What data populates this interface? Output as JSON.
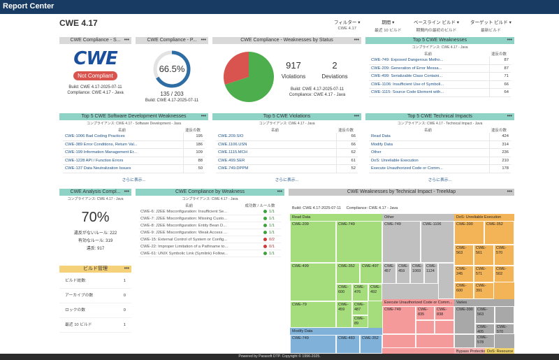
{
  "app": {
    "title": "Report Center"
  },
  "page": {
    "title": "CWE 4.17"
  },
  "filters": [
    {
      "label": "フィルター",
      "value": "CWE 4.17"
    },
    {
      "label": "期間",
      "value": "最近 10 ビルド"
    },
    {
      "label": "ベースライン ビルド",
      "value": "期間内の最初のビルド"
    },
    {
      "label": "ターゲット ビルド",
      "value": "最新ビルド"
    }
  ],
  "compliance_status": {
    "title": "CWE Compliance - S...",
    "logo_text": "CWE",
    "badge": "Not Compliant",
    "build": "Build: CWE 4.17-2025-07-11",
    "compliance": "Compliance: CWE 4.17 - Java",
    "colors": {
      "badge": "#d9534f",
      "logo": "#1a4f9c"
    }
  },
  "compliance_percent": {
    "title": "CWE Compliance - P...",
    "percent": "66.5%",
    "fraction": "135 / 203",
    "build": "Build: CWE 4.17-2025-07-11",
    "value": 0.665
  },
  "weakness_status": {
    "title": "CWE Compliance - Weaknesses by Status",
    "violations_count": "917",
    "violations_label": "Violations",
    "deviations_count": "2",
    "deviations_label": "Deviations",
    "build": "Build: CWE 4.17-2025-07-11",
    "compliance": "Compliance: CWE 4.17 - Java",
    "chart_data": {
      "type": "pie",
      "values": [
        917,
        2
      ],
      "colors": [
        "#4cae4c",
        "#d9534f"
      ]
    }
  },
  "top5_weaknesses": {
    "title": "Top 5 CWE Weaknesses",
    "subtitle": "コンプライアンス: CWE 4.17 - Java",
    "col_name": "名前",
    "col_count": "違反の数",
    "rows": [
      {
        "name": "CWE-749: Exposed Dangerous Metho...",
        "count": "87"
      },
      {
        "name": "CWE-209: Generation of Error Messa...",
        "count": "87"
      },
      {
        "name": "CWE-499: Serializable Class Containi...",
        "count": "71"
      },
      {
        "name": "CWE-1106: Insufficient Use of Symboli...",
        "count": "66"
      },
      {
        "name": "CWE-1115: Source Code Element with...",
        "count": "64"
      }
    ]
  },
  "top5_sdw": {
    "title": "Top 5 CWE Software Development Weaknesses",
    "subtitle": "コンプライアンス: CWE 4.17 - Software Development - Java",
    "col_name": "名前",
    "col_count": "違反の数",
    "rows": [
      {
        "name": "CWE-1006 Bad Coding Practices",
        "count": "195"
      },
      {
        "name": "CWE-389 Error Conditions, Return Val...",
        "count": "186"
      },
      {
        "name": "CWE-199 Information Management Er...",
        "count": "109"
      },
      {
        "name": "CWE-1228 API / Function Errors",
        "count": "88"
      },
      {
        "name": "CWE-137 Data Neutralization Issues",
        "count": "50"
      }
    ],
    "more": "さらに表示..."
  },
  "top5_violations": {
    "title": "Top 5 CWE Violations",
    "subtitle": "コンプライアンス: CWE 4.17 - Java",
    "col_name": "名前",
    "col_count": "違反の数",
    "rows": [
      {
        "name": "CWE.209.SIO",
        "count": "66"
      },
      {
        "name": "CWE.1106.USN",
        "count": "66"
      },
      {
        "name": "CWE.1115.MCH",
        "count": "62"
      },
      {
        "name": "CWE.499.SER",
        "count": "61"
      },
      {
        "name": "CWE.749.DPPM",
        "count": "52"
      }
    ],
    "more": "さらに表示..."
  },
  "top5_impacts": {
    "title": "Top 5 CWE Technical Impacts",
    "subtitle": "コンプライアンス: CWE 4.17 - Technical Impact - Java",
    "col_name": "名前",
    "col_count": "違反の数",
    "rows": [
      {
        "name": "Read Data",
        "count": "424"
      },
      {
        "name": "Modify Data",
        "count": "314"
      },
      {
        "name": "Other",
        "count": "236"
      },
      {
        "name": "DoS: Unreliable Execution",
        "count": "210"
      },
      {
        "name": "Execute Unauthorized Code or Comm...",
        "count": "178"
      }
    ],
    "more": "さらに表示..."
  },
  "analysis": {
    "title": "CWE Analysis Compl...",
    "subtitle": "コンプライアンス: CWE 4.17 - Java",
    "percent": "70%",
    "line1": "違反がないルール: 222",
    "line2": "有効なルール: 319",
    "line3": "違反: 917"
  },
  "by_weakness": {
    "title": "CWE Compliance by Weakness",
    "subtitle": "コンプライアンス: CWE 4.17 - Java",
    "col_name": "名前",
    "col_rate": "成功数 / ルール数",
    "rows": [
      {
        "name": "CWE-6: J2EE Misconfiguration: Insufficient Se...",
        "rate": "1/1",
        "ok": true
      },
      {
        "name": "CWE-7: J2EE Misconfiguration: Missing Custo...",
        "rate": "1/1",
        "ok": true
      },
      {
        "name": "CWE-8: J2EE Misconfiguration: Entity Bean D...",
        "rate": "1/1",
        "ok": true
      },
      {
        "name": "CWE-9: J2EE Misconfiguration: Weak Access ...",
        "rate": "1/1",
        "ok": true
      },
      {
        "name": "CWE-15: External Control of System or Config...",
        "rate": "0/2",
        "ok": false
      },
      {
        "name": "CWE-22: Improper Limitation of a Pathname to...",
        "rate": "0/1",
        "ok": false
      },
      {
        "name": "CWE-61: UNIX Symbolic Link (Symlink) Follow...",
        "rate": "1/1",
        "ok": true
      }
    ]
  },
  "build_mgmt": {
    "title": "ビルド管理",
    "rows": [
      {
        "label": "ビルド総数:",
        "value": "1"
      },
      {
        "label": "アーカイブの数",
        "value": "0"
      },
      {
        "label": "ロックの数",
        "value": "0"
      },
      {
        "label": "最近 10 ビルド",
        "value": "1"
      }
    ]
  },
  "treemap": {
    "title": "CWE Weaknesses by Technical Impact - TreeMap",
    "build": "Build: CWE 4.17-2025-07-11",
    "compliance": "Compliance: CWE 4.17 - Java",
    "categories": [
      {
        "name": "Read Data",
        "color": "#a6dd7c"
      },
      {
        "name": "Other",
        "color": "#c0c0c0"
      },
      {
        "name": "DoS: Unreliable Execution",
        "color": "#f3b458"
      },
      {
        "name": "Execute Unauthorized Code or Comm...",
        "color": "#f49a9a"
      },
      {
        "name": "Varies",
        "color": "#a8a8a8"
      },
      {
        "name": "Modify Data",
        "color": "#7fb1d9"
      },
      {
        "name": "Bypass Protection",
        "color": "#f3b0b0"
      },
      {
        "name": "DoS: Resource",
        "color": "#f0d36a"
      }
    ],
    "cells": [
      "CWE-209",
      "CWE-749",
      "CWE-499",
      "CWE-352",
      "CWE-497",
      "CWE-600",
      "CWE-476",
      "CWE-492",
      "CWE-79",
      "CWE-459",
      "CWE-487",
      "CWE-89",
      "CWE-749",
      "CWE-1106",
      "CWE-457",
      "CWE-459",
      "CWE-1069",
      "CWE-1124",
      "CWE-390",
      "CWE-352",
      "CWE-563",
      "CWE-561",
      "CWE-570",
      "CWE-571",
      "CWE-245",
      "CWE-502",
      "CWE-600",
      "CWE-391",
      "CWE-749",
      "CWE-835",
      "CWE-838",
      "CWE-390",
      "CWE-563",
      "CWE-405",
      "CWE-570",
      "CWE-578",
      "CWE-749",
      "CWE-483",
      "CWE-352"
    ],
    "footer": "Powered by Parasoft DTP. Copyright © 1996-2025."
  }
}
